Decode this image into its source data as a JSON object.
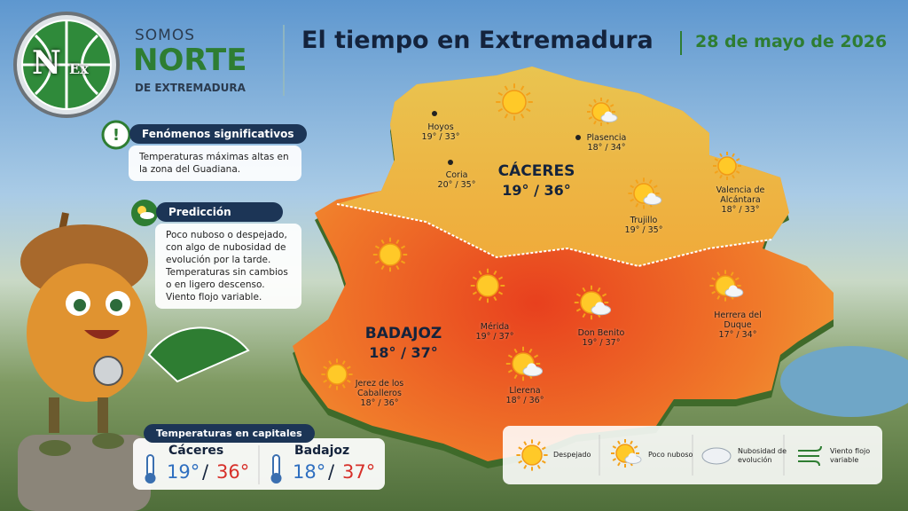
{
  "header": {
    "logo_mark": [
      "N",
      "Ex"
    ],
    "logo_lines": [
      "SOMOS",
      "NORTE",
      "DE EXTREMADURA"
    ],
    "title": "El tiempo en Extremadura",
    "date": "28 de mayo de 2026"
  },
  "panels": {
    "phenomena": {
      "title": "Fenómenos significativos",
      "text": "Temperaturas máximas altas en la zona del Guadiana."
    },
    "prediction": {
      "title": "Predicción",
      "text": "Poco nuboso o despejado, con algo de nubosidad de evolución por la tarde. Temperaturas sin cambios o en ligero descenso. Viento flojo variable."
    }
  },
  "map": {
    "provinces": [
      {
        "name": "CÁCERES",
        "temps": "19° / 36°"
      },
      {
        "name": "BADAJOZ",
        "temps": "18° / 37°"
      }
    ],
    "cities": [
      {
        "name": "Hoyos",
        "temps": "19° / 33°"
      },
      {
        "name": "Plasencia",
        "temps": "18° / 34°"
      },
      {
        "name": "Coria",
        "temps": "20° / 35°"
      },
      {
        "name": "Valencia de Alcántara",
        "temps": "18° / 33°"
      },
      {
        "name": "Trujillo",
        "temps": "19° / 35°"
      },
      {
        "name": "Mérida",
        "temps": "19° / 37°"
      },
      {
        "name": "Don Benito",
        "temps": "19° / 37°"
      },
      {
        "name": "Herrera del Duque",
        "temps": "17° / 34°"
      },
      {
        "name": "Jerez de los Caballeros",
        "temps": "18° / 36°"
      },
      {
        "name": "Llerena",
        "temps": "18° / 36°"
      }
    ]
  },
  "capitals": {
    "title": "Temperaturas en capitales",
    "separator": "/",
    "items": [
      {
        "name": "Cáceres",
        "min": "19°",
        "max": "36°"
      },
      {
        "name": "Badajoz",
        "min": "18°",
        "max": "37°"
      }
    ]
  },
  "legend": [
    "Despejado",
    "Poco nuboso",
    "Nubosidad de evolución",
    "Viento flojo variable"
  ]
}
